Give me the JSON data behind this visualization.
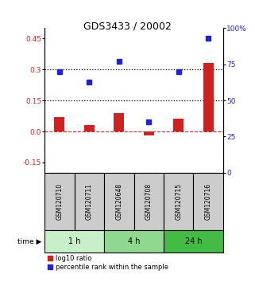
{
  "title": "GDS3433 / 20002",
  "samples": [
    "GSM120710",
    "GSM120711",
    "GSM120648",
    "GSM120708",
    "GSM120715",
    "GSM120716"
  ],
  "log10_ratio": [
    0.07,
    0.03,
    0.09,
    -0.02,
    0.06,
    0.33
  ],
  "percentile_rank": [
    70,
    63,
    77,
    35,
    70,
    93
  ],
  "groups": [
    {
      "label": "1 h",
      "indices": [
        0,
        1
      ],
      "color": "#c8f0c8"
    },
    {
      "label": "4 h",
      "indices": [
        2,
        3
      ],
      "color": "#90d890"
    },
    {
      "label": "24 h",
      "indices": [
        4,
        5
      ],
      "color": "#44bb44"
    }
  ],
  "bar_color": "#cc2222",
  "dot_color": "#2222cc",
  "ylim_left": [
    -0.2,
    0.5
  ],
  "ylim_right": [
    0,
    100
  ],
  "yticks_left": [
    -0.15,
    0.0,
    0.15,
    0.3,
    0.45
  ],
  "yticks_right": [
    0,
    25,
    50,
    75,
    100
  ],
  "hlines": [
    0.3,
    0.15
  ],
  "bg_color_samples": "#cccccc",
  "legend_bar_label": "log10 ratio",
  "legend_dot_label": "percentile rank within the sample",
  "time_label": "time",
  "bar_width": 0.35
}
